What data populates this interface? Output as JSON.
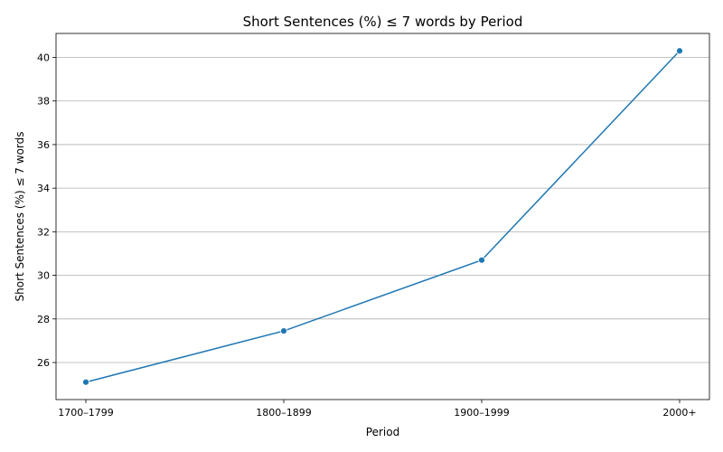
{
  "chart_data": {
    "type": "line",
    "title": "Short Sentences (%) ≤ 7 words by Period",
    "xlabel": "Period",
    "ylabel": "Short Sentences (%) ≤ 7 words",
    "categories": [
      "1700–1799",
      "1800–1899",
      "1900–1999",
      "2000+"
    ],
    "series": [
      {
        "values": [
          25.1,
          27.45,
          30.7,
          40.3
        ]
      }
    ],
    "ylim": [
      24.3,
      41.1
    ],
    "yticks": [
      26,
      28,
      30,
      32,
      34,
      36,
      38,
      40
    ],
    "grid": "horizontal",
    "color": "#1f77b4"
  }
}
